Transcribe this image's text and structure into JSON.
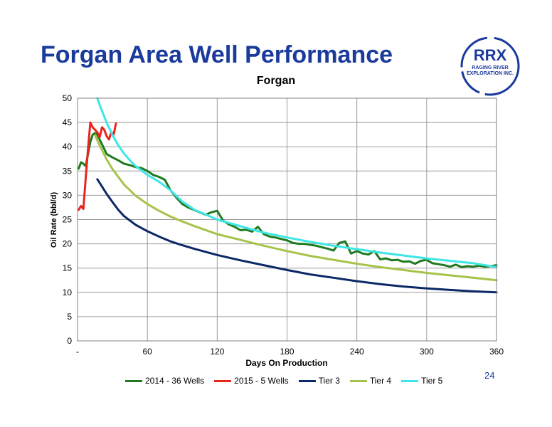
{
  "slide": {
    "title": "Forgan Area Well Performance",
    "page_number": "24"
  },
  "logo": {
    "line1": "RRX",
    "line2": "RAGING RIVER",
    "line3": "EXPLORATION INC.",
    "color": "#1a3a9c"
  },
  "chart_data": {
    "type": "line",
    "title": "Forgan",
    "xlabel": "Days On Production",
    "ylabel": "Oil Rate (bbl/d)",
    "xlim": [
      0,
      360
    ],
    "ylim": [
      0,
      50
    ],
    "xticks": [
      0,
      60,
      120,
      180,
      240,
      300,
      360
    ],
    "xtick_labels": [
      "-",
      "60",
      "120",
      "180",
      "240",
      "300",
      "360"
    ],
    "yticks": [
      0,
      5,
      10,
      15,
      20,
      25,
      30,
      35,
      40,
      45,
      50
    ],
    "grid": true,
    "legend_position": "bottom",
    "series": [
      {
        "name": "2014 - 36 Wells",
        "color": "#1f7a1f",
        "x": [
          1,
          3,
          5,
          7,
          9,
          11,
          13,
          15,
          17,
          19,
          21,
          25,
          30,
          35,
          40,
          45,
          50,
          55,
          60,
          65,
          70,
          75,
          80,
          85,
          90,
          95,
          100,
          105,
          110,
          115,
          120,
          125,
          130,
          135,
          140,
          145,
          150,
          155,
          160,
          165,
          170,
          175,
          180,
          185,
          190,
          195,
          200,
          205,
          210,
          215,
          220,
          225,
          230,
          235,
          240,
          245,
          250,
          255,
          260,
          265,
          270,
          275,
          280,
          285,
          290,
          295,
          300,
          305,
          310,
          315,
          320,
          325,
          330,
          335,
          340,
          345,
          350,
          355,
          360
        ],
        "values": [
          35.5,
          36.8,
          36.5,
          36.0,
          38.5,
          41.0,
          42.5,
          42.8,
          42.5,
          41.5,
          40.5,
          38.5,
          37.8,
          37.2,
          36.5,
          36.2,
          35.8,
          35.6,
          35.0,
          34.2,
          33.8,
          33.2,
          31.0,
          29.5,
          28.2,
          27.5,
          27.0,
          26.5,
          26.0,
          26.5,
          26.8,
          24.8,
          24.0,
          23.5,
          22.8,
          22.9,
          22.5,
          23.5,
          22.0,
          21.5,
          21.3,
          21.0,
          20.7,
          20.2,
          20.0,
          20.0,
          19.8,
          19.6,
          19.3,
          19.0,
          18.6,
          20.2,
          20.5,
          18.0,
          18.5,
          18.0,
          17.8,
          18.5,
          16.8,
          17.0,
          16.6,
          16.7,
          16.3,
          16.4,
          15.9,
          16.5,
          16.7,
          16.0,
          15.8,
          15.6,
          15.3,
          15.7,
          15.2,
          15.4,
          15.3,
          15.5,
          15.3,
          15.4,
          15.6
        ]
      },
      {
        "name": "2015 - 5 Wells",
        "color": "#e8251f",
        "x": [
          1,
          3,
          5,
          7,
          9,
          11,
          13,
          15,
          17,
          19,
          21,
          23,
          25,
          27,
          29,
          31,
          33
        ],
        "values": [
          27.0,
          27.8,
          27.2,
          33.5,
          39.5,
          45.0,
          44.0,
          43.5,
          43.0,
          42.0,
          44.0,
          43.5,
          42.2,
          41.5,
          43.0,
          42.5,
          44.8
        ]
      },
      {
        "name": "Tier 3",
        "color": "#0c2866",
        "x": [
          17,
          20,
          25,
          30,
          35,
          40,
          50,
          60,
          70,
          80,
          90,
          100,
          120,
          140,
          160,
          180,
          200,
          220,
          240,
          260,
          280,
          300,
          320,
          340,
          360
        ],
        "values": [
          33.3,
          32.2,
          30.3,
          28.6,
          27.0,
          25.7,
          23.9,
          22.6,
          21.5,
          20.5,
          19.7,
          19.0,
          17.7,
          16.6,
          15.6,
          14.6,
          13.7,
          13.0,
          12.3,
          11.7,
          11.2,
          10.8,
          10.5,
          10.2,
          10.0
        ]
      },
      {
        "name": "Tier 4",
        "color": "#a6c349",
        "x": [
          15,
          20,
          25,
          30,
          40,
          50,
          60,
          70,
          80,
          90,
          100,
          120,
          140,
          160,
          180,
          200,
          220,
          240,
          260,
          280,
          300,
          320,
          340,
          360
        ],
        "values": [
          42.4,
          39.8,
          37.4,
          35.4,
          32.2,
          29.9,
          28.2,
          26.8,
          25.6,
          24.6,
          23.7,
          22.0,
          20.8,
          19.6,
          18.5,
          17.5,
          16.7,
          15.9,
          15.2,
          14.6,
          14.0,
          13.5,
          13.0,
          12.5
        ]
      },
      {
        "name": "Tier 5",
        "color": "#3ee6e6",
        "x": [
          17,
          20,
          25,
          30,
          35,
          40,
          45,
          50,
          60,
          70,
          80,
          90,
          100,
          120,
          140,
          160,
          180,
          200,
          220,
          240,
          260,
          280,
          300,
          320,
          340,
          360
        ],
        "values": [
          50.0,
          48.0,
          45.0,
          42.4,
          40.3,
          38.6,
          37.2,
          36.0,
          34.2,
          32.8,
          31.0,
          28.7,
          27.1,
          25.0,
          23.6,
          22.3,
          21.3,
          20.4,
          19.6,
          18.9,
          18.2,
          17.6,
          17.0,
          16.5,
          16.0,
          15.2
        ]
      }
    ]
  }
}
